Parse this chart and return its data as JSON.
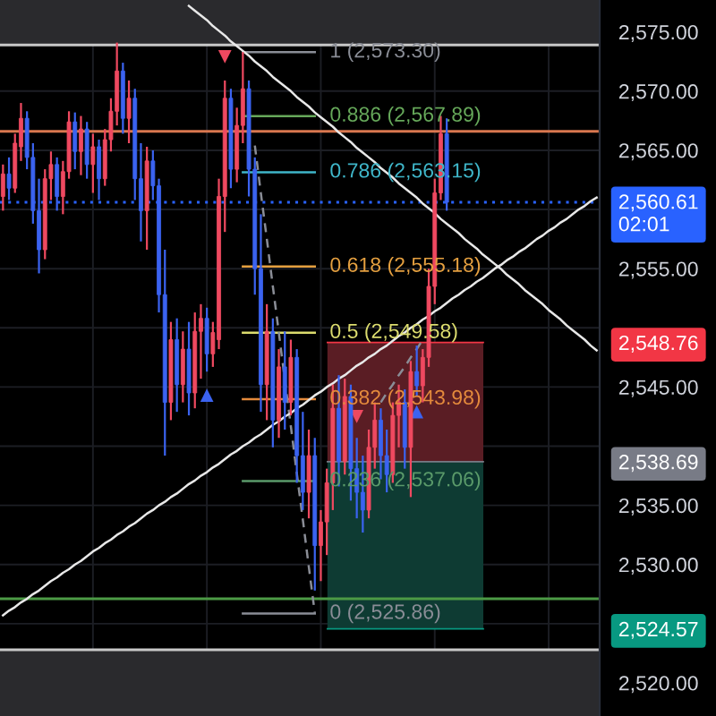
{
  "chart_data": {
    "type": "candlestick",
    "categories": [
      null,
      null,
      null,
      null,
      null,
      null,
      null,
      null,
      null,
      null,
      null,
      null,
      null,
      null,
      null,
      null,
      null,
      null,
      null,
      null,
      null,
      null,
      null,
      null,
      null,
      null,
      null,
      null,
      null,
      null,
      null,
      null,
      null,
      null,
      null,
      null,
      null,
      null,
      null,
      null,
      null,
      null,
      null,
      null,
      null,
      null,
      null,
      null,
      null,
      null,
      null,
      null,
      null,
      null,
      null,
      null,
      null,
      null,
      null,
      null,
      null,
      null,
      null,
      null,
      null,
      null,
      null,
      null,
      null,
      null,
      null,
      null,
      null,
      null,
      null,
      null,
      null,
      null,
      null,
      null,
      null,
      null,
      null,
      null,
      null,
      null,
      null,
      null,
      null,
      null,
      null,
      null,
      null,
      null,
      null,
      null,
      null,
      null,
      null,
      null
    ],
    "ohlc": [
      [
        2561.1,
        2563.8,
        2559.9,
        2563.0
      ],
      [
        2563.0,
        2564.4,
        2560.8,
        2561.8
      ],
      [
        2561.8,
        2566.4,
        2561.4,
        2565.6
      ],
      [
        2565.3,
        2569.0,
        2564.1,
        2567.7
      ],
      [
        2567.7,
        2568.3,
        2563.4,
        2564.4
      ],
      [
        2564.4,
        2565.6,
        2558.8,
        2559.9
      ],
      [
        2559.9,
        2562.6,
        2554.6,
        2556.6
      ],
      [
        2556.6,
        2563.4,
        2555.8,
        2562.6
      ],
      [
        2562.6,
        2564.9,
        2560.8,
        2563.8
      ],
      [
        2563.8,
        2564.4,
        2559.9,
        2561.1
      ],
      [
        2561.1,
        2564.1,
        2559.6,
        2563.2
      ],
      [
        2563.2,
        2568.3,
        2562.6,
        2567.4
      ],
      [
        2567.4,
        2568.2,
        2563.4,
        2564.9
      ],
      [
        2564.9,
        2567.9,
        2562.9,
        2566.8
      ],
      [
        2566.8,
        2567.4,
        2562.6,
        2563.8
      ],
      [
        2563.8,
        2566.4,
        2561.4,
        2565.3
      ],
      [
        2565.3,
        2565.9,
        2560.8,
        2562.6
      ],
      [
        2562.6,
        2566.8,
        2562.0,
        2565.9
      ],
      [
        2565.9,
        2569.4,
        2564.9,
        2568.3
      ],
      [
        2568.3,
        2574.1,
        2567.1,
        2571.7
      ],
      [
        2571.7,
        2572.4,
        2566.4,
        2567.7
      ],
      [
        2567.7,
        2570.9,
        2565.6,
        2569.4
      ],
      [
        2569.4,
        2570.2,
        2560.8,
        2562.6
      ],
      [
        2562.6,
        2565.6,
        2557.3,
        2559.9
      ],
      [
        2559.9,
        2565.3,
        2556.6,
        2564.1
      ],
      [
        2564.1,
        2565.0,
        2560.8,
        2562.0
      ],
      [
        2562.0,
        2562.6,
        2551.3,
        2552.8
      ],
      [
        2552.8,
        2556.6,
        2539.2,
        2543.7
      ],
      [
        2543.7,
        2550.5,
        2542.2,
        2549.0
      ],
      [
        2549.0,
        2550.8,
        2542.9,
        2545.2
      ],
      [
        2545.2,
        2549.7,
        2543.7,
        2548.2
      ],
      [
        2548.2,
        2550.5,
        2542.6,
        2544.5
      ],
      [
        2544.5,
        2551.3,
        2543.2,
        2549.7
      ],
      [
        2549.7,
        2552.0,
        2545.7,
        2550.8
      ],
      [
        2550.8,
        2551.7,
        2546.3,
        2547.8
      ],
      [
        2547.8,
        2550.5,
        2546.7,
        2549.6
      ],
      [
        2549.0,
        2562.6,
        2548.2,
        2561.1
      ],
      [
        2561.1,
        2570.9,
        2558.1,
        2569.4
      ],
      [
        2569.4,
        2570.2,
        2561.8,
        2563.4
      ],
      [
        2563.4,
        2568.6,
        2562.3,
        2567.1
      ],
      [
        2567.1,
        2573.3,
        2565.6,
        2570.2
      ],
      [
        2570.2,
        2570.9,
        2561.1,
        2563.4
      ],
      [
        2563.4,
        2564.4,
        2552.8,
        2555.0
      ],
      [
        2555.0,
        2559.6,
        2542.9,
        2545.2
      ],
      [
        2545.2,
        2552.0,
        2542.2,
        2549.7
      ],
      [
        2549.7,
        2550.8,
        2539.9,
        2542.2
      ],
      [
        2542.2,
        2548.2,
        2540.7,
        2546.7
      ],
      [
        2546.7,
        2549.7,
        2541.4,
        2543.7
      ],
      [
        2543.7,
        2549.0,
        2542.6,
        2547.5
      ],
      [
        2547.5,
        2548.2,
        2536.9,
        2539.2
      ],
      [
        2539.2,
        2542.9,
        2534.6,
        2536.1
      ],
      [
        2536.1,
        2541.4,
        2533.9,
        2539.2
      ],
      [
        2539.2,
        2540.7,
        2527.8,
        2531.6
      ],
      [
        2531.6,
        2534.6,
        2528.6,
        2533.6
      ],
      [
        2533.6,
        2538.1,
        2530.8,
        2536.9
      ],
      [
        2536.9,
        2545.2,
        2534.6,
        2543.2
      ],
      [
        2543.2,
        2546.0,
        2536.6,
        2538.7
      ],
      [
        2538.7,
        2545.7,
        2537.6,
        2544.2
      ],
      [
        2544.2,
        2545.2,
        2535.4,
        2538.1
      ],
      [
        2538.1,
        2540.7,
        2533.9,
        2536.1
      ],
      [
        2536.1,
        2539.2,
        2532.7,
        2534.6
      ],
      [
        2534.6,
        2541.4,
        2533.9,
        2539.9
      ],
      [
        2539.9,
        2543.7,
        2538.1,
        2542.2
      ],
      [
        2542.2,
        2543.2,
        2537.2,
        2539.2
      ],
      [
        2539.2,
        2541.4,
        2536.1,
        2537.6
      ],
      [
        2537.6,
        2543.7,
        2536.9,
        2542.6
      ],
      [
        2542.6,
        2545.2,
        2539.9,
        2543.7
      ],
      [
        2543.7,
        2544.8,
        2538.1,
        2539.9
      ],
      [
        2539.9,
        2547.2,
        2535.7,
        2546.3
      ],
      [
        2546.3,
        2548.5,
        2544.2,
        2545.1
      ],
      [
        2545.1,
        2548.2,
        2543.7,
        2547.5
      ],
      [
        2547.5,
        2555.0,
        2546.7,
        2553.5
      ],
      [
        2553.5,
        2562.6,
        2552.0,
        2561.4
      ],
      [
        2561.4,
        2567.9,
        2560.8,
        2566.4
      ],
      [
        2566.4,
        2567.7,
        2559.9,
        2560.61
      ],
      null,
      null,
      null,
      null,
      null,
      null,
      null,
      null,
      null,
      null,
      null,
      null,
      null,
      null,
      null,
      null,
      null,
      null,
      null,
      null,
      null,
      null,
      null,
      null,
      null
    ],
    "colors": [
      "#ef4960",
      "#3b63f0",
      "#ef4960",
      "#ef4960",
      "#3b63f0",
      "#3b63f0",
      "#3b63f0",
      "#ef4960",
      "#ef4960",
      "#3b63f0",
      "#ef4960",
      "#ef4960",
      "#3b63f0",
      "#ef4960",
      "#3b63f0",
      "#ef4960",
      "#3b63f0",
      "#ef4960",
      "#ef4960",
      "#ef4960",
      "#3b63f0",
      "#ef4960",
      "#3b63f0",
      "#3b63f0",
      "#ef4960",
      "#3b63f0",
      "#3b63f0",
      "#3b63f0",
      "#ef4960",
      "#3b63f0",
      "#ef4960",
      "#3b63f0",
      "#ef4960",
      "#ef4960",
      "#3b63f0",
      "#ef4960",
      "#ef4960",
      "#ef4960",
      "#3b63f0",
      "#ef4960",
      "#ef4960",
      "#3b63f0",
      "#3b63f0",
      "#3b63f0",
      "#ef4960",
      "#3b63f0",
      "#ef4960",
      "#3b63f0",
      "#ef4960",
      "#3b63f0",
      "#3b63f0",
      "#ef4960",
      "#3b63f0",
      "#ef4960",
      "#ef4960",
      "#ef4960",
      "#3b63f0",
      "#ef4960",
      "#3b63f0",
      "#3b63f0",
      "#3b63f0",
      "#ef4960",
      "#ef4960",
      "#3b63f0",
      "#3b63f0",
      "#ef4960",
      "#ef4960",
      "#3b63f0",
      "#ef4960",
      "#3b63f0",
      "#ef4960",
      "#ef4960",
      "#ef4960",
      "#ef4960",
      "#3b63f0",
      null,
      null,
      null,
      null,
      null,
      null,
      null,
      null,
      null,
      null,
      null,
      null,
      null,
      null,
      null,
      null,
      null,
      null,
      null,
      null,
      null,
      null,
      null,
      null,
      null
    ],
    "ylim": [
      2517.2,
      2577.7
    ],
    "yticks": [
      {
        "value": 2520,
        "label": "2,520.00"
      },
      {
        "value": 2524.57,
        "label": "2,524.57"
      },
      {
        "value": 2525,
        "label": null
      },
      {
        "value": 2530,
        "label": "2,530.00"
      },
      {
        "value": 2535,
        "label": "2,535.00"
      },
      {
        "value": 2538.69,
        "label": "2,538.69"
      },
      {
        "value": 2540,
        "label": null
      },
      {
        "value": 2545,
        "label": "2,545.00"
      },
      {
        "value": 2548.76,
        "label": "2,548.76"
      },
      {
        "value": 2550,
        "label": null
      },
      {
        "value": 2555,
        "label": "2,555.00"
      },
      {
        "value": 2560,
        "label": null
      },
      {
        "value": 2565,
        "label": "2,565.00"
      },
      {
        "value": 2570,
        "label": "2,570.00"
      },
      {
        "value": 2575,
        "label": "2,575.00"
      }
    ],
    "tick_labels": "y",
    "grid": true,
    "series": [
      {
        "type": "line",
        "name": "1 (2,573.30)",
        "color": "#8a8d96",
        "values": [
          null,
          null,
          null,
          null,
          null,
          null,
          null,
          null,
          null,
          null,
          null,
          null,
          null,
          null,
          null,
          null,
          null,
          null,
          null,
          null,
          null,
          null,
          null,
          null,
          null,
          null,
          null,
          null,
          null,
          null,
          null,
          null,
          null,
          null,
          null,
          null,
          null,
          null,
          null,
          null,
          2573.3,
          2573.3,
          2573.3,
          2573.3,
          2573.3,
          2573.3,
          2573.3,
          2573.3,
          2573.3,
          2573.3,
          2573.3,
          2573.3,
          2573.3,
          null,
          null,
          null,
          null,
          null,
          null,
          null,
          null,
          null,
          null,
          null,
          null,
          null,
          null,
          null,
          null,
          null,
          null,
          null,
          null,
          null,
          null,
          null,
          null,
          null,
          null,
          null,
          null,
          null,
          null,
          null,
          null,
          null,
          null,
          null,
          null,
          null,
          null,
          null,
          null,
          null,
          null,
          null,
          null,
          null,
          null,
          null
        ]
      },
      {
        "type": "line",
        "name": "0.886 (2,567.89)",
        "color": "#66a85a",
        "values": [
          null,
          null,
          null,
          null,
          null,
          null,
          null,
          null,
          null,
          null,
          null,
          null,
          null,
          null,
          null,
          null,
          null,
          null,
          null,
          null,
          null,
          null,
          null,
          null,
          null,
          null,
          null,
          null,
          null,
          null,
          null,
          null,
          null,
          null,
          null,
          null,
          null,
          null,
          null,
          null,
          2567.89,
          2567.89,
          2567.89,
          2567.89,
          2567.89,
          2567.89,
          2567.89,
          2567.89,
          2567.89,
          2567.89,
          2567.89,
          2567.89,
          2567.89,
          null,
          null,
          null,
          null,
          null,
          null,
          null,
          null,
          null,
          null,
          null,
          null,
          null,
          null,
          null,
          null,
          null,
          null,
          null,
          null,
          null,
          null,
          null,
          null,
          null,
          null,
          null,
          null,
          null,
          null,
          null,
          null,
          null,
          null,
          null,
          null,
          null,
          null,
          null,
          null,
          null,
          null,
          null,
          null,
          null,
          null,
          null
        ]
      },
      {
        "type": "line",
        "name": "0.786 (2,563.15)",
        "color": "#3fb6c9",
        "values": [
          null,
          null,
          null,
          null,
          null,
          null,
          null,
          null,
          null,
          null,
          null,
          null,
          null,
          null,
          null,
          null,
          null,
          null,
          null,
          null,
          null,
          null,
          null,
          null,
          null,
          null,
          null,
          null,
          null,
          null,
          null,
          null,
          null,
          null,
          null,
          null,
          null,
          null,
          null,
          null,
          2563.15,
          2563.15,
          2563.15,
          2563.15,
          2563.15,
          2563.15,
          2563.15,
          2563.15,
          2563.15,
          2563.15,
          2563.15,
          2563.15,
          2563.15,
          null,
          null,
          null,
          null,
          null,
          null,
          null,
          null,
          null,
          null,
          null,
          null,
          null,
          null,
          null,
          null,
          null,
          null,
          null,
          null,
          null,
          null,
          null,
          null,
          null,
          null,
          null,
          null,
          null,
          null,
          null,
          null,
          null,
          null,
          null,
          null,
          null,
          null,
          null,
          null,
          null,
          null,
          null,
          null,
          null,
          null,
          null
        ]
      },
      {
        "type": "line",
        "name": "0.618 (2,555.18)",
        "color": "#e5a040",
        "values": [
          null,
          null,
          null,
          null,
          null,
          null,
          null,
          null,
          null,
          null,
          null,
          null,
          null,
          null,
          null,
          null,
          null,
          null,
          null,
          null,
          null,
          null,
          null,
          null,
          null,
          null,
          null,
          null,
          null,
          null,
          null,
          null,
          null,
          null,
          null,
          null,
          null,
          null,
          null,
          null,
          2555.18,
          2555.18,
          2555.18,
          2555.18,
          2555.18,
          2555.18,
          2555.18,
          2555.18,
          2555.18,
          2555.18,
          2555.18,
          2555.18,
          2555.18,
          null,
          null,
          null,
          null,
          null,
          null,
          null,
          null,
          null,
          null,
          null,
          null,
          null,
          null,
          null,
          null,
          null,
          null,
          null,
          null,
          null,
          null,
          null,
          null,
          null,
          null,
          null,
          null,
          null,
          null,
          null,
          null,
          null,
          null,
          null,
          null,
          null,
          null,
          null,
          null,
          null,
          null,
          null,
          null,
          null,
          null,
          null
        ]
      },
      {
        "type": "line",
        "name": "0.5 (2,549.58)",
        "color": "#dcdc6e",
        "values": [
          null,
          null,
          null,
          null,
          null,
          null,
          null,
          null,
          null,
          null,
          null,
          null,
          null,
          null,
          null,
          null,
          null,
          null,
          null,
          null,
          null,
          null,
          null,
          null,
          null,
          null,
          null,
          null,
          null,
          null,
          null,
          null,
          null,
          null,
          null,
          null,
          null,
          null,
          null,
          null,
          2549.58,
          2549.58,
          2549.58,
          2549.58,
          2549.58,
          2549.58,
          2549.58,
          2549.58,
          2549.58,
          2549.58,
          2549.58,
          2549.58,
          2549.58,
          null,
          null,
          null,
          null,
          null,
          null,
          null,
          null,
          null,
          null,
          null,
          null,
          null,
          null,
          null,
          null,
          null,
          null,
          null,
          null,
          null,
          null,
          null,
          null,
          null,
          null,
          null,
          null,
          null,
          null,
          null,
          null,
          null,
          null,
          null,
          null,
          null,
          null,
          null,
          null,
          null,
          null,
          null,
          null,
          null,
          null,
          null
        ]
      },
      {
        "type": "line",
        "name": "0.382 (2,543.98)",
        "color": "#e48a3c",
        "values": [
          null,
          null,
          null,
          null,
          null,
          null,
          null,
          null,
          null,
          null,
          null,
          null,
          null,
          null,
          null,
          null,
          null,
          null,
          null,
          null,
          null,
          null,
          null,
          null,
          null,
          null,
          null,
          null,
          null,
          null,
          null,
          null,
          null,
          null,
          null,
          null,
          null,
          null,
          null,
          null,
          2543.98,
          2543.98,
          2543.98,
          2543.98,
          2543.98,
          2543.98,
          2543.98,
          2543.98,
          2543.98,
          2543.98,
          2543.98,
          2543.98,
          2543.98,
          null,
          null,
          null,
          null,
          null,
          null,
          null,
          null,
          null,
          null,
          null,
          null,
          null,
          null,
          null,
          null,
          null,
          null,
          null,
          null,
          null,
          null,
          null,
          null,
          null,
          null,
          null,
          null,
          null,
          null,
          null,
          null,
          null,
          null,
          null,
          null,
          null,
          null,
          null,
          null,
          null,
          null,
          null,
          null,
          null,
          null,
          null
        ]
      },
      {
        "type": "line",
        "name": "0.236 (2,537.06)",
        "color": "#5a9a6a",
        "values": [
          null,
          null,
          null,
          null,
          null,
          null,
          null,
          null,
          null,
          null,
          null,
          null,
          null,
          null,
          null,
          null,
          null,
          null,
          null,
          null,
          null,
          null,
          null,
          null,
          null,
          null,
          null,
          null,
          null,
          null,
          null,
          null,
          null,
          null,
          null,
          null,
          null,
          null,
          null,
          null,
          2537.06,
          2537.06,
          2537.06,
          2537.06,
          2537.06,
          2537.06,
          2537.06,
          2537.06,
          2537.06,
          2537.06,
          2537.06,
          2537.06,
          2537.06,
          null,
          null,
          null,
          null,
          null,
          null,
          null,
          null,
          null,
          null,
          null,
          null,
          null,
          null,
          null,
          null,
          null,
          null,
          null,
          null,
          null,
          null,
          null,
          null,
          null,
          null,
          null,
          null,
          null,
          null,
          null,
          null,
          null,
          null,
          null,
          null,
          null,
          null,
          null,
          null,
          null,
          null,
          null,
          null,
          null,
          null,
          null
        ]
      },
      {
        "type": "line",
        "name": "0 (2,525.86)",
        "color": "#8a8d96",
        "values": [
          null,
          null,
          null,
          null,
          null,
          null,
          null,
          null,
          null,
          null,
          null,
          null,
          null,
          null,
          null,
          null,
          null,
          null,
          null,
          null,
          null,
          null,
          null,
          null,
          null,
          null,
          null,
          null,
          null,
          null,
          null,
          null,
          null,
          null,
          null,
          null,
          null,
          null,
          null,
          null,
          2525.86,
          2525.86,
          2525.86,
          2525.86,
          2525.86,
          2525.86,
          2525.86,
          2525.86,
          2525.86,
          2525.86,
          2525.86,
          2525.86,
          2525.86,
          null,
          null,
          null,
          null,
          null,
          null,
          null,
          null,
          null,
          null,
          null,
          null,
          null,
          null,
          null,
          null,
          null,
          null,
          null,
          null,
          null,
          null,
          null,
          null,
          null,
          null,
          null,
          null,
          null,
          null,
          null,
          null,
          null,
          null,
          null,
          null,
          null,
          null,
          null,
          null,
          null,
          null,
          null,
          null,
          null,
          null,
          null
        ]
      },
      {
        "type": "line",
        "color": "#8a8d96",
        "line_style": "dashed",
        "values": [
          null,
          null,
          null,
          null,
          null,
          null,
          null,
          null,
          null,
          null,
          null,
          null,
          null,
          null,
          null,
          null,
          null,
          null,
          null,
          null,
          null,
          null,
          null,
          null,
          null,
          null,
          null,
          null,
          null,
          null,
          null,
          null,
          null,
          null,
          null,
          null,
          null,
          null,
          null,
          null,
          null,
          null,
          2565.4,
          2561.4,
          2557.5,
          2553.5,
          2549.6,
          2545.6,
          2541.7,
          2537.7,
          2533.8,
          2529.8,
          2525.9,
          null,
          null,
          null,
          null,
          null,
          null,
          null,
          null,
          null,
          null,
          null,
          null,
          null,
          null,
          null,
          null,
          null,
          null,
          null,
          null,
          null,
          null,
          null,
          null,
          null,
          null,
          null,
          null,
          null,
          null,
          null,
          null,
          null,
          null,
          null,
          null,
          null,
          null,
          null,
          null,
          null,
          null,
          null,
          null,
          null,
          null,
          null
        ]
      },
      {
        "type": "line",
        "color": "#e8e8e8",
        "values": [
          null,
          null,
          null,
          null,
          null,
          null,
          null,
          null,
          null,
          null,
          null,
          null,
          null,
          null,
          null,
          null,
          null,
          null,
          null,
          null,
          null,
          null,
          null,
          null,
          null,
          null,
          null,
          null,
          null,
          null,
          null,
          2577.2,
          2576.8,
          2576.4,
          2576.0,
          2575.5,
          2575.1,
          2574.7,
          2574.2,
          2573.8,
          2573.4,
          2573.0,
          2572.5,
          2572.1,
          2571.7,
          2571.2,
          2570.8,
          2570.4,
          2570.0,
          2569.5,
          2569.1,
          2568.7,
          2568.2,
          2567.8,
          2567.4,
          2567.0,
          2566.5,
          2566.1,
          2565.7,
          2565.2,
          2564.8,
          2564.4,
          2564.0,
          2563.5,
          2563.1,
          2562.7,
          2562.2,
          2561.8,
          2561.4,
          2561.0,
          2560.5,
          2560.1,
          2559.7,
          2559.2,
          2558.8,
          2558.4,
          2558.0,
          2557.5,
          2557.1,
          2556.7,
          2556.2,
          2555.8,
          2555.4,
          2555.0,
          2554.5,
          2554.1,
          2553.7,
          2553.2,
          2552.8,
          2552.4,
          2552.0,
          2551.5,
          2551.1,
          2550.7,
          2550.2,
          2549.8,
          2549.4,
          2549.0,
          2548.5,
          2548.1
        ]
      },
      {
        "type": "line",
        "color": "#e8e8e8",
        "values": [
          2525.7,
          2526.1,
          2526.4,
          2526.8,
          2527.1,
          2527.5,
          2527.8,
          2528.2,
          2528.6,
          2528.9,
          2529.3,
          2529.6,
          2530.0,
          2530.3,
          2530.7,
          2531.1,
          2531.4,
          2531.8,
          2532.1,
          2532.5,
          2532.8,
          2533.2,
          2533.5,
          2533.9,
          2534.3,
          2534.6,
          2535.0,
          2535.3,
          2535.7,
          2536.0,
          2536.4,
          2536.8,
          2537.1,
          2537.5,
          2537.8,
          2538.2,
          2538.5,
          2538.9,
          2539.3,
          2539.6,
          2540.0,
          2540.3,
          2540.7,
          2541.0,
          2541.4,
          2541.8,
          2542.1,
          2542.5,
          2542.8,
          2543.2,
          2543.5,
          2543.9,
          2544.3,
          2544.6,
          2545.0,
          2545.3,
          2545.7,
          2546.0,
          2546.4,
          2546.8,
          2547.1,
          2547.5,
          2547.8,
          2548.2,
          2548.5,
          2548.9,
          2549.3,
          2549.6,
          2550.0,
          2550.3,
          2550.7,
          2551.0,
          2551.4,
          2551.7,
          2552.1,
          2552.5,
          2552.8,
          2553.2,
          2553.5,
          2553.9,
          2554.2,
          2554.6,
          2555.0,
          2555.3,
          2555.7,
          2556.0,
          2556.4,
          2556.7,
          2557.1,
          2557.5,
          2557.8,
          2558.2,
          2558.5,
          2558.9,
          2559.2,
          2559.6,
          2560.0,
          2560.3,
          2560.7,
          2561.0
        ]
      },
      {
        "type": "line",
        "color": "#8a8d96",
        "line_style": "dashed",
        "values": [
          null,
          null,
          null,
          null,
          null,
          null,
          null,
          null,
          null,
          null,
          null,
          null,
          null,
          null,
          null,
          null,
          null,
          null,
          null,
          null,
          null,
          null,
          null,
          null,
          null,
          null,
          null,
          null,
          null,
          null,
          null,
          null,
          null,
          null,
          null,
          null,
          null,
          null,
          null,
          null,
          null,
          null,
          null,
          null,
          null,
          null,
          null,
          null,
          null,
          null,
          null,
          null,
          null,
          null,
          null,
          null,
          null,
          null,
          null,
          null,
          null,
          null,
          null,
          2543.7,
          2544.5,
          2545.2,
          2546.0,
          2546.7,
          2547.5,
          2548.2,
          2549.0,
          null,
          null,
          null,
          null,
          null,
          null,
          null,
          null,
          null,
          null,
          null,
          null,
          null,
          null,
          null,
          null,
          null,
          null,
          null,
          null,
          null,
          null,
          null,
          null,
          null,
          null,
          null,
          null,
          null
        ]
      },
      {
        "type": "scatter",
        "color": "#ef4960",
        "marker": "triangle",
        "values": [
          null,
          null,
          null,
          null,
          null,
          null,
          null,
          null,
          null,
          null,
          null,
          null,
          null,
          null,
          null,
          null,
          null,
          null,
          null,
          null,
          null,
          null,
          null,
          null,
          null,
          null,
          null,
          null,
          null,
          null,
          null,
          null,
          null,
          null,
          null,
          null,
          null,
          2572.9,
          null,
          null,
          null,
          null,
          null,
          null,
          null,
          null,
          null,
          null,
          null,
          null,
          null,
          null,
          null,
          null,
          null,
          null,
          null,
          null,
          null,
          2542.5,
          null,
          null,
          null,
          null,
          null,
          null,
          null,
          null,
          null,
          null,
          null,
          null,
          null,
          null,
          null,
          null,
          null,
          null,
          null,
          null,
          null,
          null,
          null,
          null,
          null,
          null,
          null,
          null,
          null,
          null,
          null,
          null,
          null,
          null,
          null,
          null,
          null,
          null,
          null,
          null
        ]
      },
      {
        "type": "scatter",
        "color": "#3b63f0",
        "marker": "triangle",
        "values": [
          null,
          null,
          null,
          null,
          null,
          null,
          null,
          null,
          null,
          null,
          null,
          null,
          null,
          null,
          null,
          null,
          null,
          null,
          null,
          null,
          null,
          null,
          null,
          null,
          null,
          null,
          null,
          null,
          null,
          null,
          null,
          null,
          null,
          null,
          2544.3,
          null,
          null,
          null,
          null,
          null,
          null,
          null,
          null,
          null,
          null,
          null,
          null,
          null,
          null,
          null,
          null,
          null,
          null,
          null,
          null,
          null,
          null,
          null,
          null,
          null,
          null,
          null,
          null,
          null,
          null,
          null,
          null,
          null,
          null,
          2542.9,
          null,
          null,
          null,
          null,
          null,
          null,
          null,
          null,
          null,
          null,
          null,
          null,
          null,
          null,
          null,
          null,
          null,
          null,
          null,
          null,
          null,
          null,
          null,
          null,
          null,
          null,
          null,
          null,
          null,
          null
        ]
      }
    ],
    "ref_lines": [
      {
        "axis": "y",
        "value": 2566.6,
        "color": "#d9774f"
      },
      {
        "axis": "y",
        "value": 2527.1,
        "color": "#4c9a45"
      },
      {
        "axis": "y",
        "value": 2573.9,
        "color": "#c8c8c8"
      },
      {
        "axis": "y",
        "value": 2522.8,
        "color": "#c8c8c8"
      },
      {
        "axis": "y",
        "value": 2560.61,
        "label": "2,560.61\n02:01",
        "color": "#2962ff",
        "line_style": "dotted"
      },
      {
        "axis": "y",
        "value": 2548.76,
        "color": "#f23645"
      },
      {
        "axis": "y",
        "value": 2538.69,
        "color": "#787b86"
      },
      {
        "axis": "y",
        "value": 2524.57,
        "color": "#089981"
      }
    ],
    "bands": [
      {
        "axis": "y",
        "from": 2573.9,
        "to": 2577.7,
        "color": "#2a2a2d"
      },
      {
        "axis": "y",
        "from": 2517.2,
        "to": 2522.8,
        "color": "#2a2a2d"
      },
      {
        "axis": "y",
        "from": 2538.69,
        "to": 2548.76,
        "color": "#5a1d24"
      },
      {
        "axis": "y",
        "from": 2524.57,
        "to": 2538.69,
        "color": "#0e3b33"
      }
    ]
  }
}
